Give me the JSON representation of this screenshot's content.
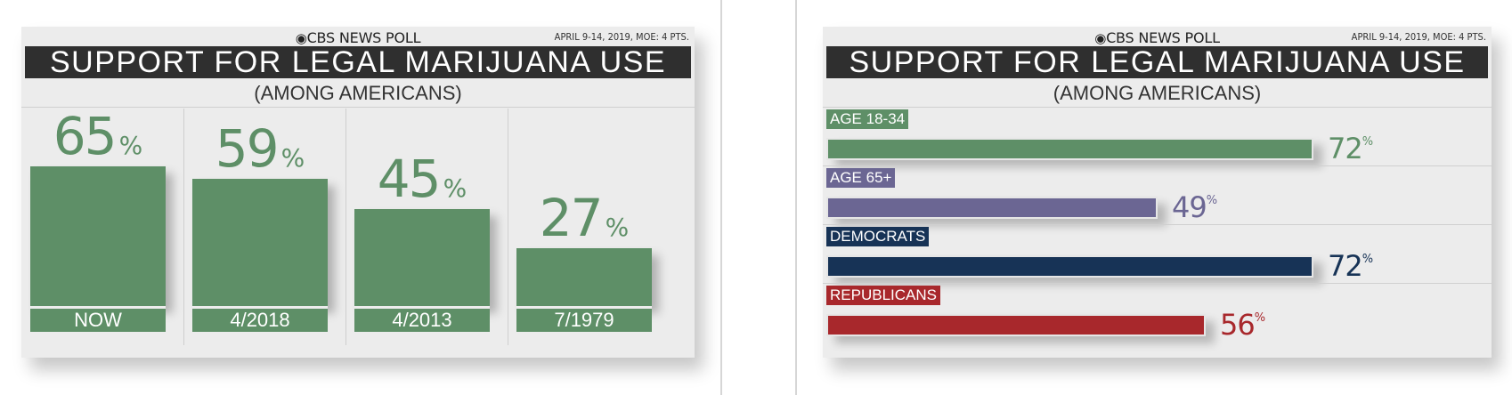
{
  "poll": {
    "brand": "CBS NEWS POLL",
    "eye": "◉",
    "dateline": "APRIL 9-14, 2019, MOE: 4 PTS.",
    "title": "SUPPORT FOR LEGAL MARIJUANA USE",
    "subtitle": "(AMONG AMERICANS)"
  },
  "chart_data": [
    {
      "type": "bar",
      "title": "SUPPORT FOR LEGAL MARIJUANA USE",
      "subtitle": "(AMONG AMERICANS)",
      "categories": [
        "NOW",
        "4/2018",
        "4/2013",
        "7/1979"
      ],
      "values": [
        65,
        59,
        45,
        27
      ],
      "unit": "%",
      "color": "#5e8f67",
      "ylim": [
        0,
        100
      ]
    },
    {
      "type": "bar",
      "orientation": "horizontal",
      "title": "SUPPORT FOR LEGAL MARIJUANA USE",
      "subtitle": "(AMONG AMERICANS)",
      "categories": [
        "AGE 18-34",
        "AGE 65+",
        "DEMOCRATS",
        "REPUBLICANS"
      ],
      "values": [
        72,
        49,
        72,
        56
      ],
      "unit": "%",
      "colors": [
        "#5e8f67",
        "#6b6693",
        "#173356",
        "#a8282c"
      ],
      "xlim": [
        0,
        100
      ]
    }
  ]
}
